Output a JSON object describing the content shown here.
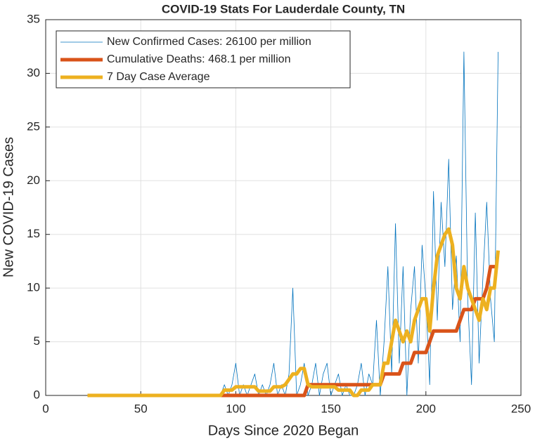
{
  "chart_data": {
    "type": "line",
    "title": "COVID-19 Stats For Lauderdale County, TN",
    "xlabel": "Days Since 2020 Began",
    "ylabel": "New COVID-19 Cases",
    "xlim": [
      0,
      250
    ],
    "xticks": [
      0,
      50,
      100,
      150,
      200,
      250
    ],
    "ylim": [
      0,
      35
    ],
    "yticks": [
      0,
      5,
      10,
      15,
      20,
      25,
      30,
      35
    ],
    "grid": true,
    "legend": "upper left",
    "x": [
      22,
      24,
      26,
      28,
      30,
      32,
      34,
      36,
      38,
      40,
      42,
      44,
      46,
      48,
      50,
      52,
      54,
      56,
      58,
      60,
      62,
      64,
      66,
      68,
      70,
      72,
      74,
      76,
      78,
      80,
      82,
      84,
      86,
      88,
      90,
      92,
      94,
      96,
      98,
      100,
      102,
      104,
      106,
      108,
      110,
      112,
      114,
      116,
      118,
      120,
      122,
      124,
      126,
      128,
      130,
      132,
      134,
      136,
      138,
      140,
      142,
      144,
      146,
      148,
      150,
      152,
      154,
      156,
      158,
      160,
      162,
      164,
      166,
      168,
      170,
      172,
      174,
      176,
      178,
      180,
      182,
      184,
      186,
      188,
      190,
      192,
      194,
      196,
      198,
      200,
      202,
      204,
      206,
      208,
      210,
      212,
      214,
      216,
      218,
      220,
      222,
      224,
      226,
      228,
      230,
      232,
      234,
      236,
      238
    ],
    "series": [
      {
        "name": "New Confirmed Cases: 26100 per million",
        "color": "#0072bd",
        "width": 0.8,
        "values": [
          0,
          0,
          0,
          0,
          0,
          0,
          0,
          0,
          0,
          0,
          0,
          0,
          0,
          0,
          0,
          0,
          0,
          0,
          0,
          0,
          0,
          0,
          0,
          0,
          0,
          0,
          0,
          0,
          0,
          0,
          0,
          0,
          0,
          0,
          0,
          0,
          1,
          0,
          1,
          3,
          0,
          1,
          0,
          1,
          2,
          0,
          1,
          0,
          1,
          3,
          0,
          1,
          0,
          2,
          10,
          0,
          1,
          3,
          0,
          1,
          3,
          0,
          2,
          3,
          0,
          1,
          2,
          0,
          1,
          0,
          0,
          1,
          3,
          0,
          2,
          1,
          7,
          0,
          5,
          12,
          2,
          16,
          3,
          12,
          0,
          8,
          12,
          3,
          14,
          9,
          1,
          19,
          7,
          18,
          12,
          22,
          8,
          13,
          5,
          32,
          9,
          1,
          17,
          3,
          11,
          18,
          9,
          5,
          32
        ]
      },
      {
        "name": "Cumulative Deaths: 468.1 per million",
        "color": "#d95319",
        "width": 5,
        "values": [
          0,
          0,
          0,
          0,
          0,
          0,
          0,
          0,
          0,
          0,
          0,
          0,
          0,
          0,
          0,
          0,
          0,
          0,
          0,
          0,
          0,
          0,
          0,
          0,
          0,
          0,
          0,
          0,
          0,
          0,
          0,
          0,
          0,
          0,
          0,
          0,
          0,
          0,
          0,
          0,
          0,
          0,
          0,
          0,
          0,
          0,
          0,
          0,
          0,
          0,
          0,
          0,
          0,
          0,
          0,
          0,
          0,
          0,
          1,
          1,
          1,
          1,
          1,
          1,
          1,
          1,
          1,
          1,
          1,
          1,
          1,
          1,
          1,
          1,
          1,
          1,
          1,
          1,
          2,
          2,
          2,
          2,
          2,
          3,
          3,
          3,
          4,
          4,
          4,
          4,
          5,
          6,
          6,
          6,
          6,
          6,
          6,
          6,
          7,
          8,
          8,
          8,
          9,
          9,
          9,
          10,
          12,
          12,
          12
        ]
      },
      {
        "name": "7 Day Case Average",
        "color": "#edb120",
        "width": 5,
        "values": [
          0,
          0,
          0,
          0,
          0,
          0,
          0,
          0,
          0,
          0,
          0,
          0,
          0,
          0,
          0,
          0,
          0,
          0,
          0,
          0,
          0,
          0,
          0,
          0,
          0,
          0,
          0,
          0,
          0,
          0,
          0,
          0,
          0,
          0,
          0,
          0,
          0.5,
          0.5,
          0.5,
          0.8,
          0.8,
          0.8,
          0.8,
          0.8,
          0.8,
          0.4,
          0.4,
          0.4,
          0.4,
          0.8,
          0.8,
          0.8,
          1,
          1.5,
          2,
          2,
          2.5,
          2.5,
          1,
          0.8,
          0.8,
          0.8,
          0.8,
          0.8,
          0.8,
          0.8,
          0.5,
          0.5,
          0.5,
          0.5,
          0,
          0,
          0.5,
          0.5,
          0.5,
          1,
          1,
          1,
          3,
          3,
          5,
          7,
          6,
          5,
          6,
          5,
          7,
          8,
          9,
          9,
          6,
          10,
          13,
          14,
          15,
          15.5,
          14,
          10,
          9,
          12,
          10,
          9,
          8,
          7,
          9,
          8,
          10,
          10,
          13.5
        ]
      }
    ]
  }
}
